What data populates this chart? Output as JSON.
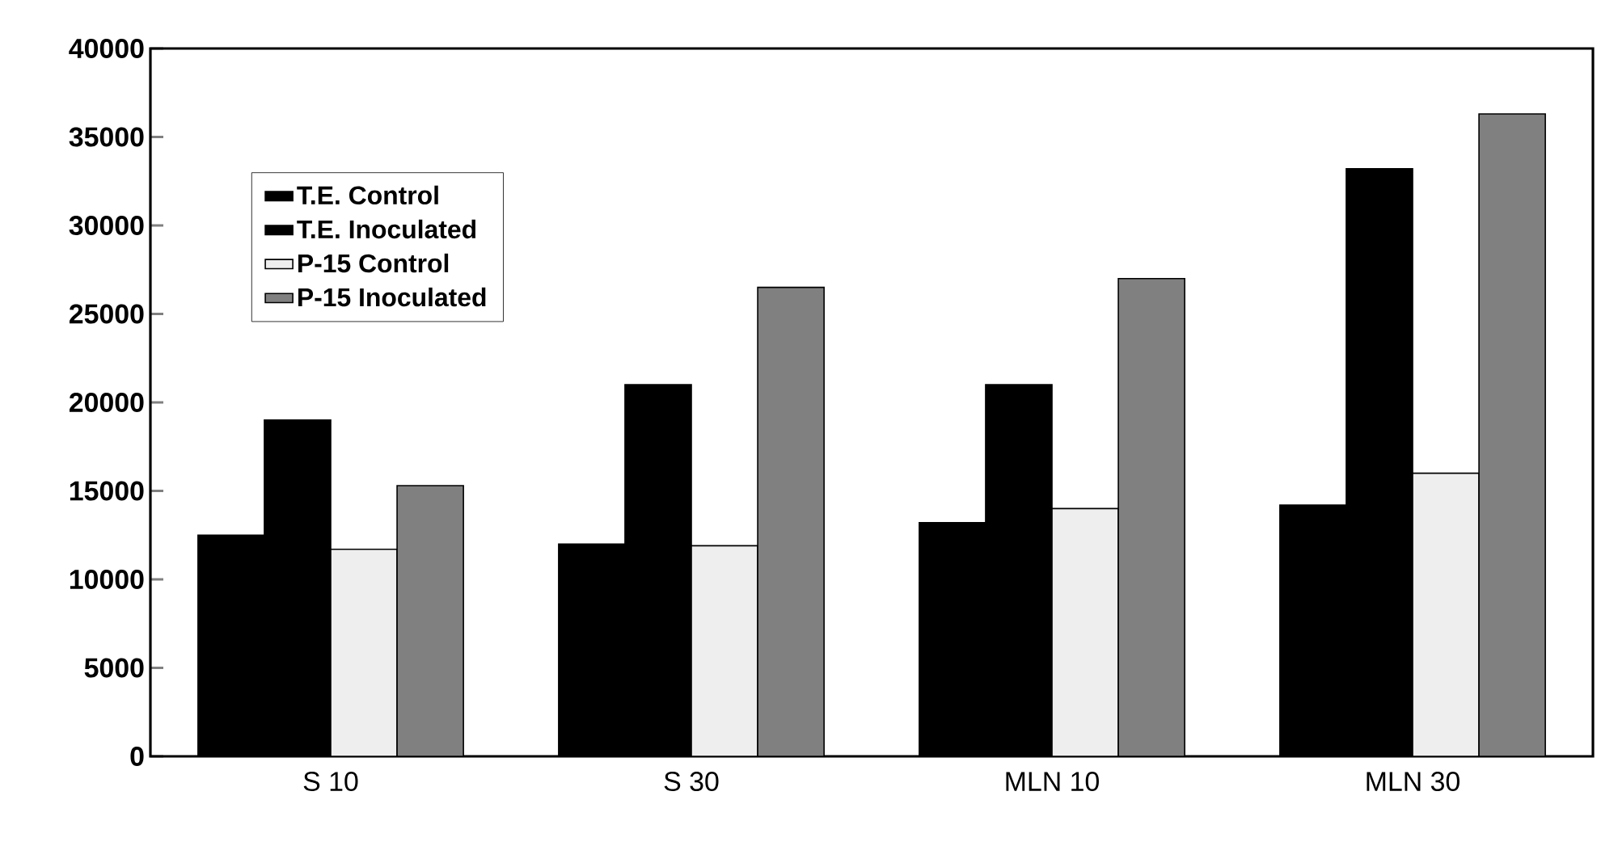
{
  "chart_data": {
    "type": "bar",
    "categories": [
      "S 10",
      "S 30",
      "MLN 10",
      "MLN 30"
    ],
    "series": [
      {
        "name": "T.E. Control",
        "color": "#000000",
        "values": [
          12500,
          12000,
          13200,
          14200
        ]
      },
      {
        "name": "T.E. Inoculated",
        "color": "#000000",
        "values": [
          19000,
          21000,
          21000,
          33200
        ]
      },
      {
        "name": "P-15 Control",
        "color": "#eeeeee",
        "values": [
          11700,
          11900,
          14000,
          16000
        ]
      },
      {
        "name": "P-15 Inoculated",
        "color": "#808080",
        "values": [
          15300,
          26500,
          27000,
          36300
        ]
      }
    ],
    "ylim": [
      0,
      40000
    ],
    "yticks": [
      0,
      5000,
      10000,
      15000,
      20000,
      25000,
      30000,
      35000,
      40000
    ],
    "legend": "top left",
    "grid": false
  }
}
